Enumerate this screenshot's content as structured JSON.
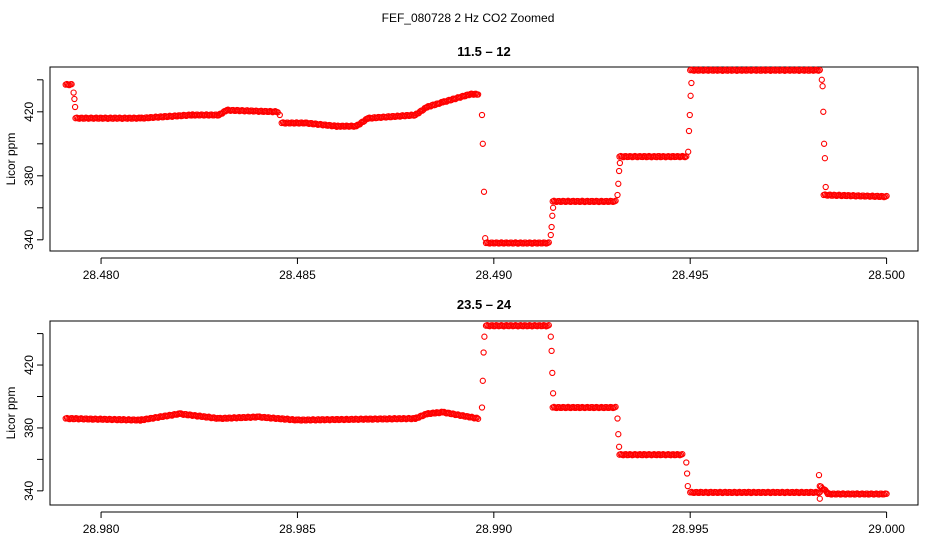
{
  "figure": {
    "title": "FEF_080728  2 Hz CO2 Zoomed"
  },
  "chart_data": [
    {
      "type": "scatter",
      "title": "11.5 – 12",
      "xlabel": "",
      "ylabel": "Licor ppm",
      "xlim": [
        28.4787,
        28.5008
      ],
      "ylim": [
        333,
        448
      ],
      "xticks": [
        28.48,
        28.485,
        28.49,
        28.495,
        28.5
      ],
      "xtick_labels": [
        "28.480",
        "28.485",
        "28.490",
        "28.495",
        "28.500"
      ],
      "yticks": [
        340,
        360,
        380,
        400,
        420,
        440
      ],
      "ytick_labels": [
        "340",
        "",
        "380",
        "",
        "420",
        ""
      ],
      "grid": false,
      "series": [
        {
          "color": "#ff0000",
          "marker": "open-circle",
          "dense_segments": [
            [
              28.4791,
              437.0,
              28.47925,
              437.0
            ],
            [
              28.47935,
              416.0,
              28.481,
              416.0
            ],
            [
              28.481,
              416.0,
              28.4823,
              418.0
            ],
            [
              28.4823,
              418.0,
              28.483,
              418.0
            ],
            [
              28.483,
              418.0,
              28.4832,
              421.0
            ],
            [
              28.4832,
              421.0,
              28.4845,
              420.0
            ],
            [
              28.4846,
              413.0,
              28.4852,
              413.0
            ],
            [
              28.4852,
              413.0,
              28.486,
              411.0
            ],
            [
              28.486,
              411.0,
              28.4865,
              411.0
            ],
            [
              28.4865,
              411.0,
              28.4868,
              416.0
            ],
            [
              28.4868,
              416.0,
              28.488,
              418.0
            ],
            [
              28.488,
              418.0,
              28.4883,
              423.0
            ],
            [
              28.4883,
              423.0,
              28.4887,
              426.0
            ],
            [
              28.4887,
              426.0,
              28.4894,
              431.0
            ],
            [
              28.4894,
              431.0,
              28.4896,
              431.0
            ],
            [
              28.4898,
              338.0,
              28.4914,
              338.0
            ],
            [
              28.4915,
              364.0,
              28.4931,
              364.0
            ],
            [
              28.4932,
              392.0,
              28.4949,
              392.0
            ],
            [
              28.495,
              446.0,
              28.4983,
              446.0
            ],
            [
              28.4984,
              368.0,
              28.5,
              367.0
            ]
          ],
          "transition_points": [
            [
              28.4793,
              432.0
            ],
            [
              28.47932,
              428.0
            ],
            [
              28.47934,
              423.0
            ],
            [
              28.48455,
              418.0
            ],
            [
              28.4897,
              418.0
            ],
            [
              28.48972,
              400.0
            ],
            [
              28.48975,
              370.0
            ],
            [
              28.48978,
              341.0
            ],
            [
              28.49145,
              343.0
            ],
            [
              28.49147,
              348.0
            ],
            [
              28.49149,
              355.0
            ],
            [
              28.49151,
              360.0
            ],
            [
              28.49315,
              368.0
            ],
            [
              28.49317,
              375.0
            ],
            [
              28.49319,
              383.0
            ],
            [
              28.49321,
              388.0
            ],
            [
              28.49495,
              395.0
            ],
            [
              28.49497,
              408.0
            ],
            [
              28.49499,
              418.0
            ],
            [
              28.49501,
              430.0
            ],
            [
              28.49503,
              438.0
            ],
            [
              28.49835,
              440.0
            ],
            [
              28.49837,
              436.0
            ],
            [
              28.49839,
              420.0
            ],
            [
              28.49841,
              400.0
            ],
            [
              28.49843,
              391.0
            ],
            [
              28.49845,
              373.0
            ]
          ]
        }
      ]
    },
    {
      "type": "scatter",
      "title": "23.5 – 24",
      "xlabel": "",
      "ylabel": "Licor ppm",
      "xlim": [
        28.9787,
        29.0008
      ],
      "ylim": [
        331,
        448
      ],
      "xticks": [
        28.98,
        28.985,
        28.99,
        28.995,
        29.0
      ],
      "xtick_labels": [
        "28.980",
        "28.985",
        "28.990",
        "28.995",
        "29.000"
      ],
      "yticks": [
        340,
        360,
        380,
        400,
        420,
        440
      ],
      "ytick_labels": [
        "340",
        "",
        "380",
        "",
        "420",
        ""
      ],
      "grid": false,
      "series": [
        {
          "color": "#ff0000",
          "marker": "open-circle",
          "dense_segments": [
            [
              28.9791,
              386.0,
              28.981,
              385.0
            ],
            [
              28.981,
              385.0,
              28.982,
              389.0
            ],
            [
              28.982,
              389.0,
              28.983,
              386.0
            ],
            [
              28.983,
              386.0,
              28.984,
              387.0
            ],
            [
              28.984,
              387.0,
              28.985,
              385.0
            ],
            [
              28.985,
              385.0,
              28.988,
              386.0
            ],
            [
              28.988,
              386.0,
              28.9883,
              389.0
            ],
            [
              28.9883,
              389.0,
              28.9887,
              390.0
            ],
            [
              28.9887,
              390.0,
              28.9896,
              386.0
            ],
            [
              28.9898,
              445.0,
              28.9914,
              445.0
            ],
            [
              28.9915,
              393.0,
              28.9931,
              393.0
            ],
            [
              28.9932,
              363.0,
              28.9948,
              363.0
            ],
            [
              28.995,
              339.0,
              28.9983,
              339.0
            ],
            [
              28.9983,
              343.0,
              28.9985,
              339.0
            ],
            [
              28.9985,
              338.0,
              29.0,
              338.0
            ]
          ],
          "transition_points": [
            [
              28.9897,
              393.0
            ],
            [
              28.98972,
              410.0
            ],
            [
              28.98974,
              428.0
            ],
            [
              28.98976,
              438.0
            ],
            [
              28.99145,
              438.0
            ],
            [
              28.99147,
              429.0
            ],
            [
              28.99149,
              415.0
            ],
            [
              28.99151,
              402.0
            ],
            [
              28.99315,
              386.0
            ],
            [
              28.99317,
              376.0
            ],
            [
              28.99319,
              368.0
            ],
            [
              28.9949,
              358.0
            ],
            [
              28.99492,
              351.0
            ],
            [
              28.99494,
              343.0
            ],
            [
              28.99828,
              350.0
            ],
            [
              28.9983,
              335.0
            ]
          ]
        }
      ]
    }
  ]
}
